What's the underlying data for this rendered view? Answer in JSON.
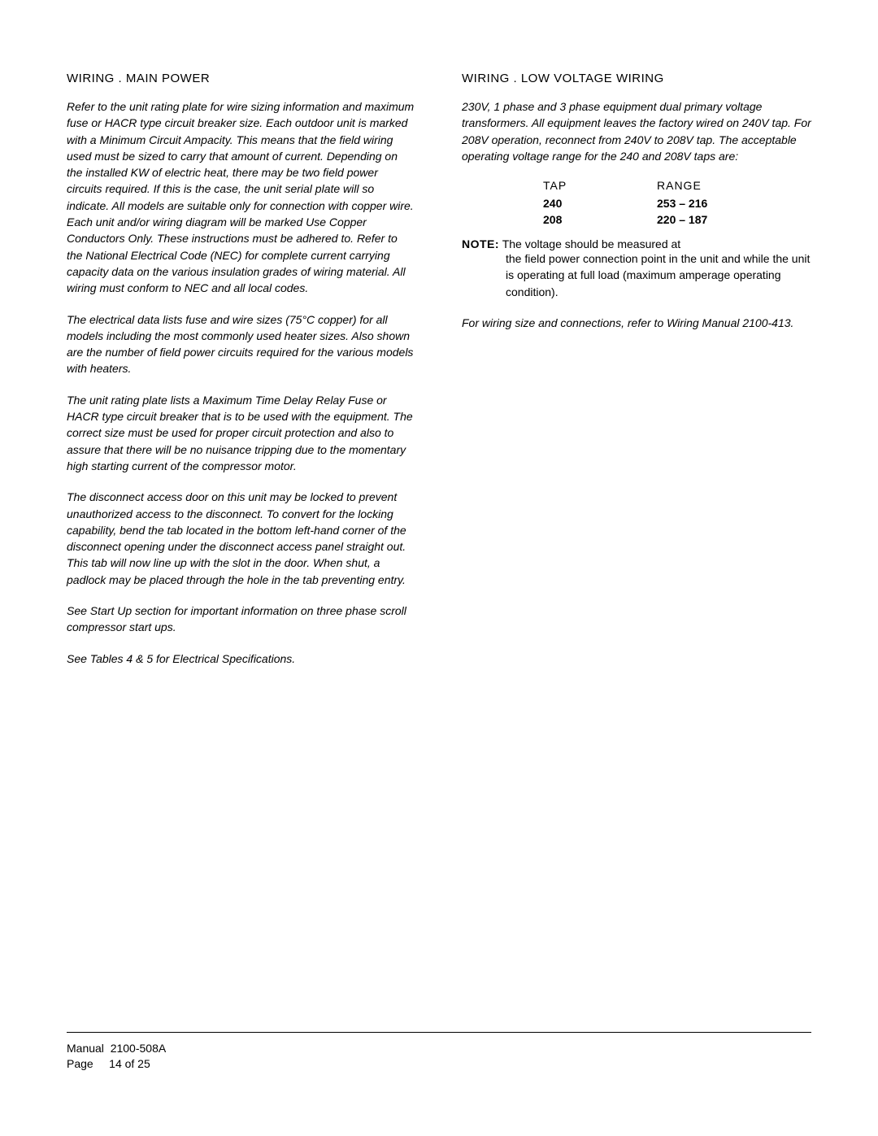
{
  "left": {
    "heading": "WIRING  . MAIN POWER",
    "p1": "Refer to the unit rating plate for wire sizing information and maximum fuse or HACR type circuit breaker size.  Each outdoor unit is marked with a Minimum Circuit Ampacity.  This means that the field wiring used must be sized to carry that amount of current. Depending on the installed KW of electric heat, there may be two field power circuits required.  If this is the case, the unit serial plate will so indicate.  All models are suitable only for connection with copper wire. Each unit and/or wiring diagram will be marked Use Copper Conductors Only.  These instructions",
    "p1_must": "must be",
    "p1_tail": "adhered to.  Refer to the National Electrical Code (NEC) for complete current carrying capacity data on the various insulation grades of wiring material.  All wiring must conform to NEC and all local codes.",
    "p2": "The electrical data lists fuse and wire sizes (75°C copper) for all models including the most commonly used heater sizes.  Also shown are the number of field power circuits required for the various models with heaters.",
    "p3": "The unit rating plate lists a Maximum Time Delay Relay Fuse or HACR type circuit breaker that is to be used with the equipment.  The correct size must be used for proper circuit protection and also to assure that there will be no nuisance tripping due to the momentary high starting current of the compressor motor.",
    "p4": "The disconnect access door on this unit may be locked to prevent unauthorized access to the disconnect.  To convert for the locking capability, bend the tab located in the bottom left-hand corner of the disconnect opening under the disconnect access panel straight out.  This tab will now line up with the slot in the door.  When shut, a padlock may be placed through the hole in the tab preventing entry.",
    "p5": "See Start Up section for important information on three phase scroll compressor start ups.",
    "p6": "See Tables 4 & 5 for Electrical Specifications."
  },
  "right": {
    "heading": "WIRING  . LOW VOLTAGE WIRING",
    "p1": "230V, 1 phase and 3 phase equipment dual primary voltage transformers.  All equipment leaves the factory wired on 240V tap.  For 208V operation, reconnect from 240V to 208V tap.  The acceptable operating voltage range for the 240 and 208V taps are:",
    "table": {
      "head_tap": "TAP",
      "head_range": "RANGE",
      "rows": [
        {
          "tap": "240",
          "range": "253 – 216"
        },
        {
          "tap": "208",
          "range": "220 – 187"
        }
      ]
    },
    "note_head": "NOTE:",
    "note_body": "The voltage should be measured at the field power connection point in the unit and while the unit is operating at full load (maximum amperage operating condition).",
    "p2": "For wiring size and connections, refer to Wiring Manual 2100-413."
  },
  "footer": {
    "manual_label": "Manual",
    "manual_value": "2100-508A",
    "page_label": "Page",
    "page_value": "14 of 25"
  }
}
